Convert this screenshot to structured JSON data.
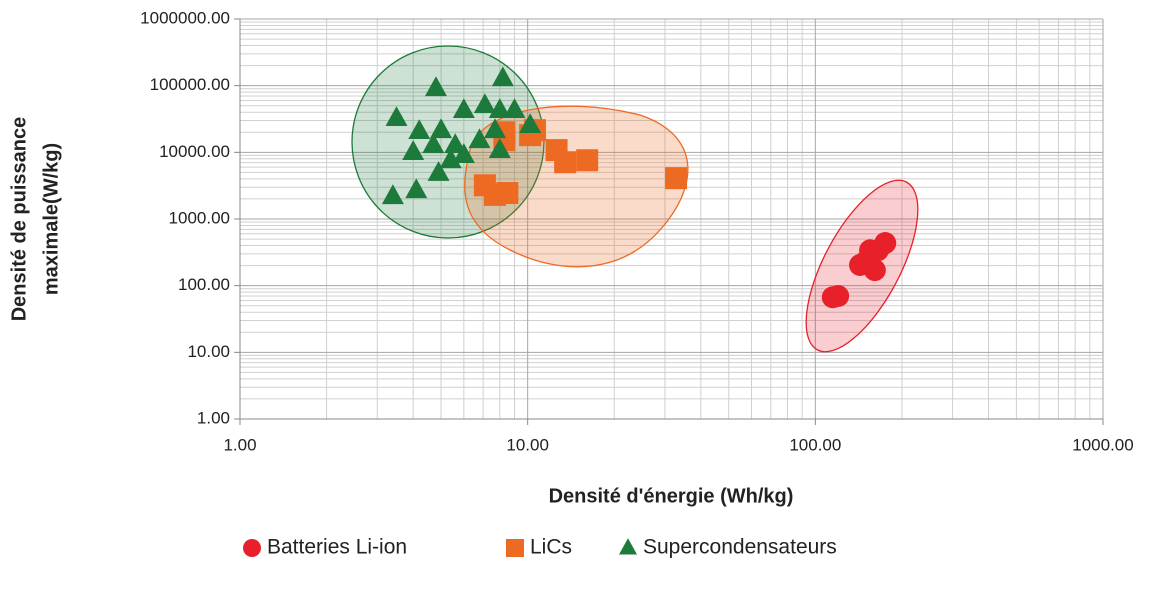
{
  "chart_data": {
    "type": "scatter",
    "x_label": "Densité d'énergie (Wh/kg)",
    "y_label": [
      "Densité de puissance",
      "maximale(W/kg)"
    ],
    "xscale": "log",
    "yscale": "log",
    "grid": true,
    "legend": "bottom",
    "xlim": [
      1,
      1000
    ],
    "xticks": [
      {
        "value": 1,
        "label": "1.00"
      },
      {
        "value": 10,
        "label": "10.00"
      },
      {
        "value": 100,
        "label": "100.00"
      },
      {
        "value": 1000,
        "label": "1000.00"
      }
    ],
    "ylim": [
      1,
      1000000
    ],
    "yticks": [
      {
        "value": 1,
        "label": "1.00"
      },
      {
        "value": 10,
        "label": "10.00"
      },
      {
        "value": 100,
        "label": "100.00"
      },
      {
        "value": 1000,
        "label": "1000.00"
      },
      {
        "value": 10000,
        "label": "10000.00"
      },
      {
        "value": 100000,
        "label": "100000.00"
      },
      {
        "value": 1000000,
        "label": "1000000.00"
      }
    ],
    "series": [
      {
        "name": "Batteries Li-ion",
        "color": "#e8202a",
        "marker": "circle",
        "x": [
          120,
          115,
          143,
          155,
          175,
          161,
          149,
          165
        ],
        "values": [
          70,
          67,
          204,
          340,
          436,
          171,
          226,
          340
        ]
      },
      {
        "name": "LiCs",
        "color": "#ed6a22",
        "marker": "square",
        "x": [
          32.8,
          10.6,
          10.2,
          12.6,
          13.5,
          16.1,
          8.3,
          8.3,
          7.1,
          7.7,
          8.5
        ],
        "values": [
          4100,
          21500,
          18100,
          10800,
          7100,
          7600,
          20000,
          15200,
          3200,
          2300,
          2450
        ]
      },
      {
        "name": "Supercondensateurs",
        "color": "#1c7a3a",
        "marker": "triangle",
        "x": [
          3.5,
          4.2,
          4.8,
          4.0,
          3.4,
          4.1,
          4.9,
          5.0,
          6.0,
          7.1,
          8.0,
          8.2,
          9.0,
          10.2,
          5.6,
          6.0,
          5.4,
          6.8,
          8.0,
          7.7,
          4.7
        ],
        "values": [
          32600,
          20800,
          91700,
          10100,
          2200,
          2700,
          4900,
          21500,
          43000,
          51000,
          43000,
          129000,
          43000,
          25600,
          12800,
          9100,
          7600,
          15200,
          10800,
          21500,
          12800
        ]
      }
    ]
  }
}
